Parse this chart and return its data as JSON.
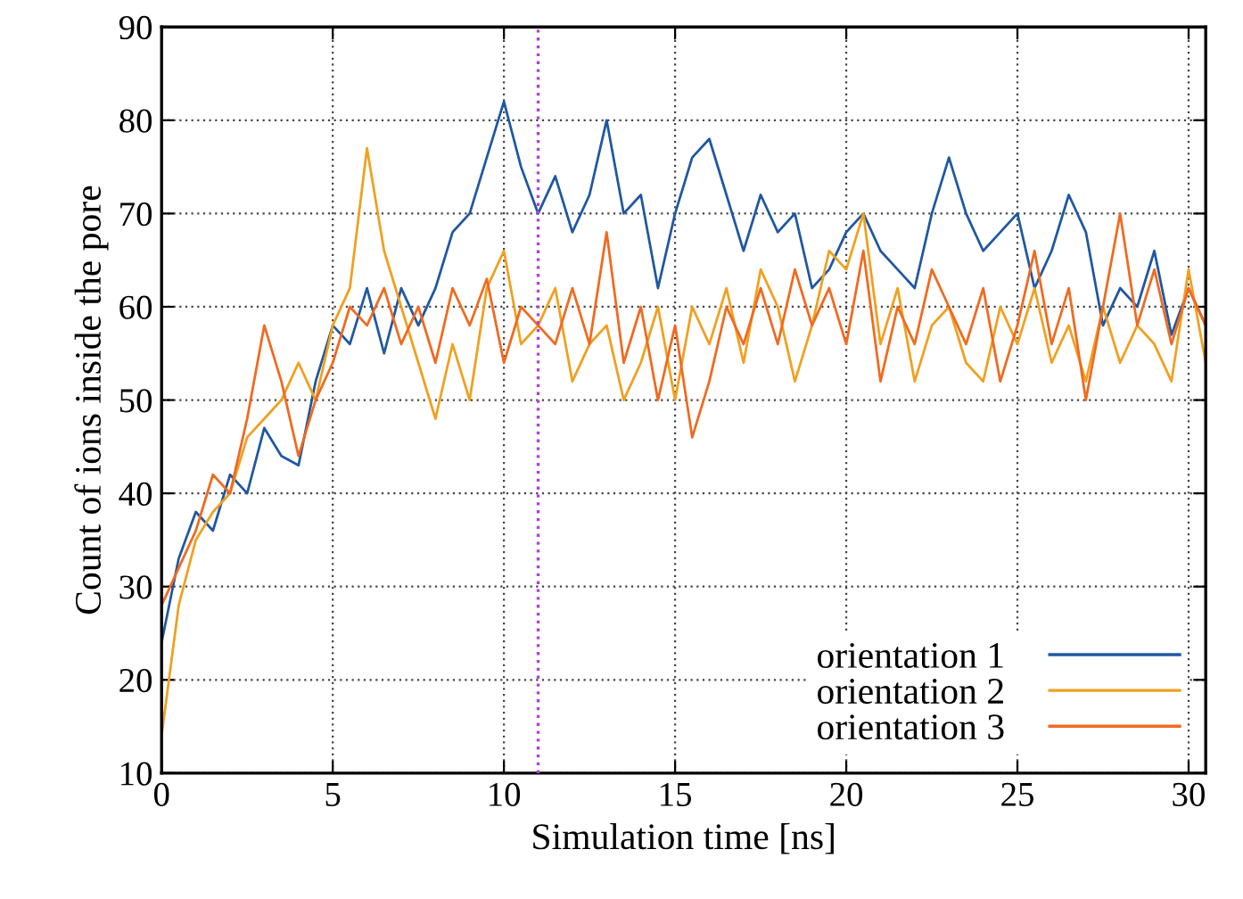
{
  "chart_data": {
    "type": "line",
    "xlabel": "Simulation time [ns]",
    "ylabel": "Count of ions inside the pore",
    "x": [
      0,
      0.5,
      1,
      1.5,
      2,
      2.5,
      3,
      3.5,
      4,
      4.5,
      5,
      5.5,
      6,
      6.5,
      7,
      7.5,
      8,
      8.5,
      9,
      9.5,
      10,
      10.5,
      11,
      11.5,
      12,
      12.5,
      13,
      13.5,
      14,
      14.5,
      15,
      15.5,
      16,
      16.5,
      17,
      17.5,
      18,
      18.5,
      19,
      19.5,
      20,
      20.5,
      21,
      21.5,
      22,
      22.5,
      23,
      23.5,
      24,
      24.5,
      25,
      25.5,
      26,
      26.5,
      27,
      27.5,
      28,
      28.5,
      29,
      29.5,
      30,
      30.5
    ],
    "series": [
      {
        "name": "orientation 1",
        "color": "#2058a0",
        "values": [
          24,
          33,
          38,
          36,
          42,
          40,
          47,
          44,
          43,
          52,
          58,
          56,
          62,
          55,
          62,
          58,
          62,
          68,
          70,
          76,
          82,
          75,
          70,
          74,
          68,
          72,
          80,
          70,
          72,
          62,
          70,
          76,
          78,
          72,
          66,
          72,
          68,
          70,
          62,
          64,
          68,
          70,
          66,
          64,
          62,
          70,
          76,
          70,
          66,
          68,
          70,
          62,
          66,
          72,
          68,
          58,
          62,
          60,
          66,
          57,
          62,
          58
        ]
      },
      {
        "name": "orientation 2",
        "color": "#f0a020",
        "values": [
          14,
          28,
          35,
          38,
          40,
          46,
          48,
          50,
          54,
          50,
          58,
          62,
          77,
          66,
          60,
          54,
          48,
          56,
          50,
          62,
          66,
          56,
          58,
          62,
          52,
          56,
          58,
          50,
          54,
          60,
          50,
          60,
          56,
          62,
          54,
          64,
          60,
          52,
          58,
          66,
          64,
          70,
          56,
          62,
          52,
          58,
          60,
          54,
          52,
          60,
          56,
          62,
          54,
          58,
          52,
          60,
          54,
          58,
          56,
          52,
          64,
          54
        ]
      },
      {
        "name": "orientation 3",
        "color": "#f06a20",
        "values": [
          28,
          32,
          36,
          42,
          40,
          48,
          58,
          52,
          44,
          50,
          54,
          60,
          58,
          62,
          56,
          60,
          54,
          62,
          58,
          63,
          54,
          60,
          58,
          56,
          62,
          56,
          68,
          54,
          60,
          50,
          58,
          46,
          52,
          60,
          56,
          62,
          56,
          64,
          58,
          62,
          56,
          66,
          52,
          60,
          56,
          64,
          60,
          56,
          62,
          52,
          58,
          66,
          56,
          62,
          50,
          60,
          70,
          58,
          64,
          56,
          62,
          58
        ]
      }
    ],
    "xlim": [
      0,
      30.5
    ],
    "xticks": [
      0,
      5,
      10,
      15,
      20,
      25,
      30
    ],
    "ylim": [
      10,
      90
    ],
    "yticks": [
      10,
      20,
      30,
      40,
      50,
      60,
      70,
      80,
      90
    ],
    "ref_lines": [
      {
        "axis": "x",
        "value": 11,
        "color": "#b040e0",
        "line_style": "dotted"
      }
    ],
    "grid": true,
    "legend": "bottom right",
    "line_style": "solid",
    "marker": "none"
  }
}
